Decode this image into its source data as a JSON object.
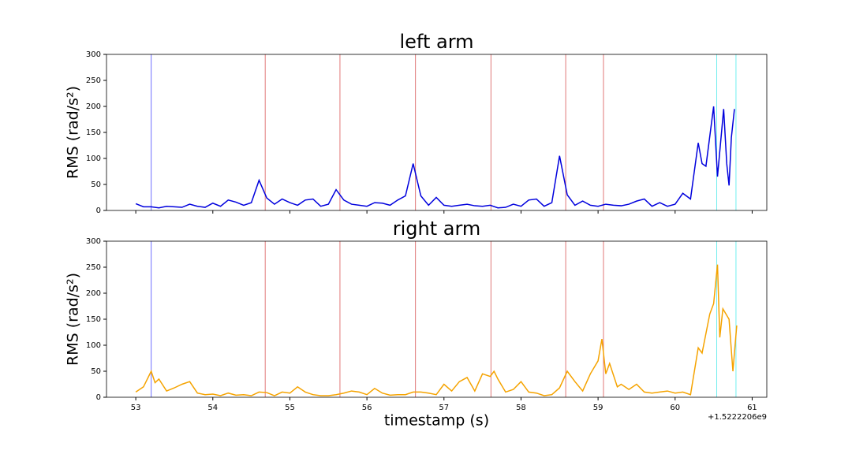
{
  "chart_data": [
    {
      "type": "line",
      "title": "left arm",
      "ylabel": "RMS (rad/s²)",
      "color": "#0000dd",
      "x": [
        53.0,
        53.1,
        53.2,
        53.3,
        53.4,
        53.5,
        53.6,
        53.7,
        53.8,
        53.9,
        54.0,
        54.1,
        54.2,
        54.3,
        54.4,
        54.5,
        54.6,
        54.7,
        54.8,
        54.9,
        55.0,
        55.1,
        55.2,
        55.3,
        55.4,
        55.5,
        55.6,
        55.7,
        55.8,
        55.9,
        56.0,
        56.1,
        56.2,
        56.3,
        56.4,
        56.5,
        56.6,
        56.7,
        56.8,
        56.9,
        57.0,
        57.1,
        57.2,
        57.3,
        57.4,
        57.5,
        57.6,
        57.7,
        57.8,
        57.9,
        58.0,
        58.1,
        58.2,
        58.3,
        58.4,
        58.5,
        58.6,
        58.7,
        58.8,
        58.9,
        59.0,
        59.1,
        59.2,
        59.3,
        59.4,
        59.5,
        59.6,
        59.7,
        59.8,
        59.9,
        60.0,
        60.1,
        60.2,
        60.3,
        60.35,
        60.4,
        60.5,
        60.55,
        60.63,
        60.67,
        60.7,
        60.73,
        60.77
      ],
      "values": [
        13,
        7,
        7,
        5,
        8,
        7,
        6,
        12,
        8,
        6,
        14,
        8,
        20,
        16,
        10,
        15,
        58,
        24,
        12,
        22,
        15,
        10,
        20,
        22,
        8,
        12,
        40,
        20,
        12,
        10,
        8,
        15,
        14,
        10,
        20,
        28,
        90,
        28,
        10,
        25,
        10,
        8,
        10,
        12,
        9,
        8,
        10,
        5,
        6,
        12,
        8,
        20,
        22,
        8,
        15,
        105,
        30,
        10,
        18,
        10,
        8,
        12,
        10,
        9,
        12,
        18,
        22,
        8,
        15,
        8,
        12,
        33,
        22,
        130,
        90,
        85,
        200,
        65,
        195,
        90,
        48,
        140,
        195
      ],
      "xlim": [
        52.62,
        61.19
      ],
      "ylim": [
        0,
        300
      ],
      "xticks": [
        53,
        54,
        55,
        56,
        57,
        58,
        59,
        60,
        61
      ],
      "yticks": [
        0,
        50,
        100,
        150,
        200,
        250,
        300
      ],
      "show_xtick_labels": false,
      "vlines": [
        {
          "x": 53.2,
          "color": "#7070ff"
        },
        {
          "x": 54.68,
          "color": "#e07878"
        },
        {
          "x": 55.65,
          "color": "#e07878"
        },
        {
          "x": 56.63,
          "color": "#e07878"
        },
        {
          "x": 57.61,
          "color": "#e07878"
        },
        {
          "x": 58.58,
          "color": "#e07878"
        },
        {
          "x": 59.07,
          "color": "#e07878"
        },
        {
          "x": 60.54,
          "color": "#70eeee"
        },
        {
          "x": 60.79,
          "color": "#70eeee"
        }
      ]
    },
    {
      "type": "line",
      "title": "right arm",
      "ylabel": "RMS (rad/s²)",
      "xlabel": "timestamp (s)",
      "x_offset_label": "+1.5222206e9",
      "color": "#f5a300",
      "x": [
        53.0,
        53.1,
        53.2,
        53.25,
        53.3,
        53.4,
        53.5,
        53.6,
        53.7,
        53.8,
        53.9,
        54.0,
        54.1,
        54.2,
        54.3,
        54.4,
        54.5,
        54.6,
        54.7,
        54.8,
        54.9,
        55.0,
        55.1,
        55.2,
        55.3,
        55.4,
        55.5,
        55.6,
        55.7,
        55.8,
        55.9,
        56.0,
        56.1,
        56.2,
        56.3,
        56.4,
        56.5,
        56.6,
        56.7,
        56.8,
        56.9,
        57.0,
        57.1,
        57.2,
        57.3,
        57.4,
        57.5,
        57.6,
        57.65,
        57.7,
        57.8,
        57.9,
        58.0,
        58.1,
        58.2,
        58.3,
        58.4,
        58.5,
        58.6,
        58.7,
        58.8,
        58.9,
        59.0,
        59.05,
        59.1,
        59.15,
        59.25,
        59.3,
        59.4,
        59.5,
        59.6,
        59.7,
        59.8,
        59.9,
        60.0,
        60.1,
        60.2,
        60.3,
        60.35,
        60.45,
        60.5,
        60.55,
        60.58,
        60.62,
        60.7,
        60.75,
        60.8
      ],
      "values": [
        10,
        20,
        50,
        28,
        35,
        12,
        18,
        25,
        30,
        8,
        5,
        6,
        3,
        8,
        4,
        5,
        3,
        10,
        9,
        3,
        10,
        8,
        20,
        10,
        5,
        3,
        3,
        5,
        8,
        12,
        10,
        5,
        17,
        8,
        4,
        5,
        5,
        10,
        10,
        8,
        5,
        25,
        12,
        30,
        38,
        12,
        45,
        40,
        50,
        35,
        10,
        15,
        30,
        10,
        8,
        3,
        5,
        18,
        50,
        30,
        12,
        45,
        70,
        112,
        45,
        65,
        20,
        25,
        15,
        25,
        10,
        8,
        10,
        12,
        8,
        10,
        5,
        95,
        85,
        160,
        180,
        255,
        115,
        170,
        150,
        50,
        138
      ],
      "xlim": [
        52.62,
        61.19
      ],
      "ylim": [
        0,
        300
      ],
      "xticks": [
        53,
        54,
        55,
        56,
        57,
        58,
        59,
        60,
        61
      ],
      "yticks": [
        0,
        50,
        100,
        150,
        200,
        250,
        300
      ],
      "show_xtick_labels": true,
      "vlines": [
        {
          "x": 53.2,
          "color": "#7070ff"
        },
        {
          "x": 54.68,
          "color": "#e07878"
        },
        {
          "x": 55.65,
          "color": "#e07878"
        },
        {
          "x": 56.63,
          "color": "#e07878"
        },
        {
          "x": 57.61,
          "color": "#e07878"
        },
        {
          "x": 58.58,
          "color": "#e07878"
        },
        {
          "x": 59.07,
          "color": "#e07878"
        },
        {
          "x": 60.54,
          "color": "#70eeee"
        },
        {
          "x": 60.79,
          "color": "#70eeee"
        }
      ]
    }
  ]
}
